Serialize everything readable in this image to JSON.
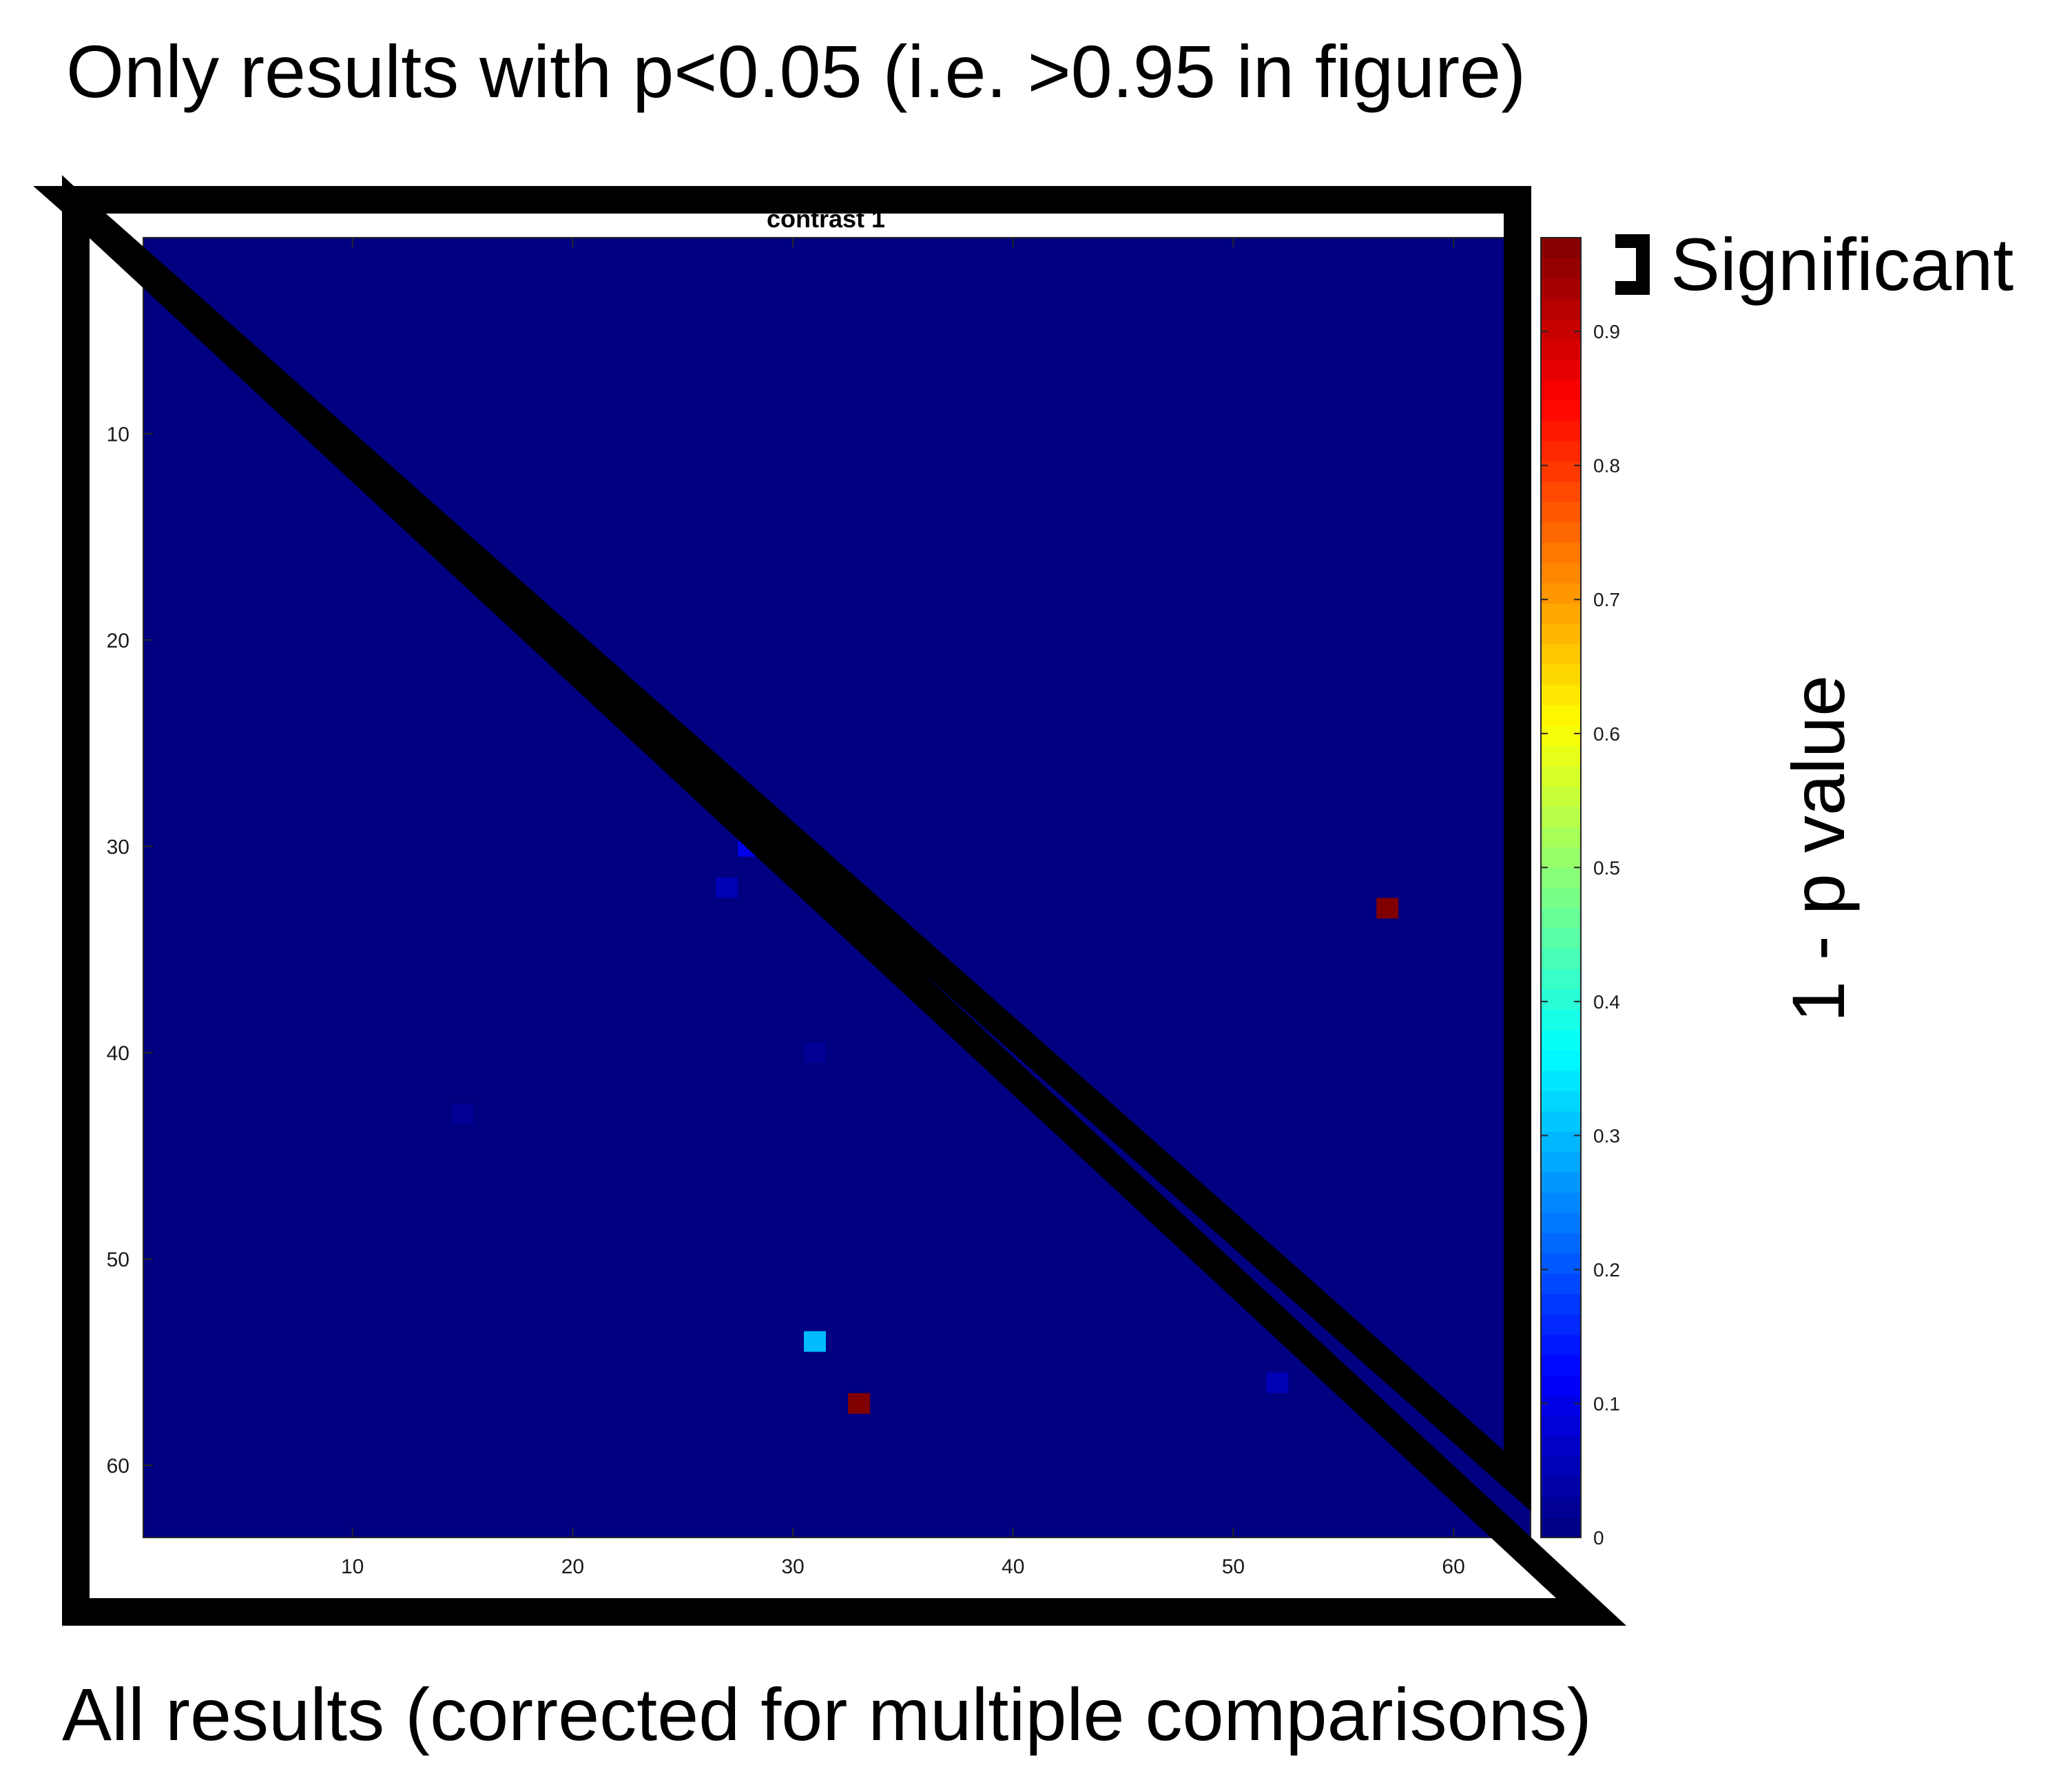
{
  "annotations": {
    "top_caption": "Only results with p<0.05 (i.e. >0.95 in figure)",
    "bottom_caption": "All results (corrected for multiple comparisons)",
    "significant_label": "Significant"
  },
  "chart_data": {
    "type": "heatmap",
    "title": "contrast 1",
    "matrix_size": 63,
    "xlim": [
      0.5,
      63.5
    ],
    "ylim": [
      0.5,
      63.5
    ],
    "y_direction": "reverse",
    "x_ticks": [
      10,
      20,
      30,
      40,
      50,
      60
    ],
    "y_ticks": [
      10,
      20,
      30,
      40,
      50,
      60
    ],
    "background_value": 0,
    "cells": [
      {
        "row": 30,
        "col": 28,
        "value": 0.1
      },
      {
        "row": 32,
        "col": 27,
        "value": 0.05
      },
      {
        "row": 33,
        "col": 57,
        "value": 0.97
      },
      {
        "row": 40,
        "col": 31,
        "value": 0.02
      },
      {
        "row": 43,
        "col": 15,
        "value": 0.02
      },
      {
        "row": 54,
        "col": 31,
        "value": 0.3
      },
      {
        "row": 56,
        "col": 52,
        "value": 0.05
      },
      {
        "row": 57,
        "col": 33,
        "value": 0.97
      }
    ],
    "colorbar": {
      "colormap": "jet",
      "label": "1 - p value",
      "range": [
        0,
        0.97
      ],
      "ticks": [
        0,
        0.1,
        0.2,
        0.3,
        0.4,
        0.5,
        0.6,
        0.7,
        0.8,
        0.9
      ]
    },
    "grid": false
  },
  "colors": {
    "annotation_stroke": "#000000",
    "axes_color": "#262626"
  }
}
